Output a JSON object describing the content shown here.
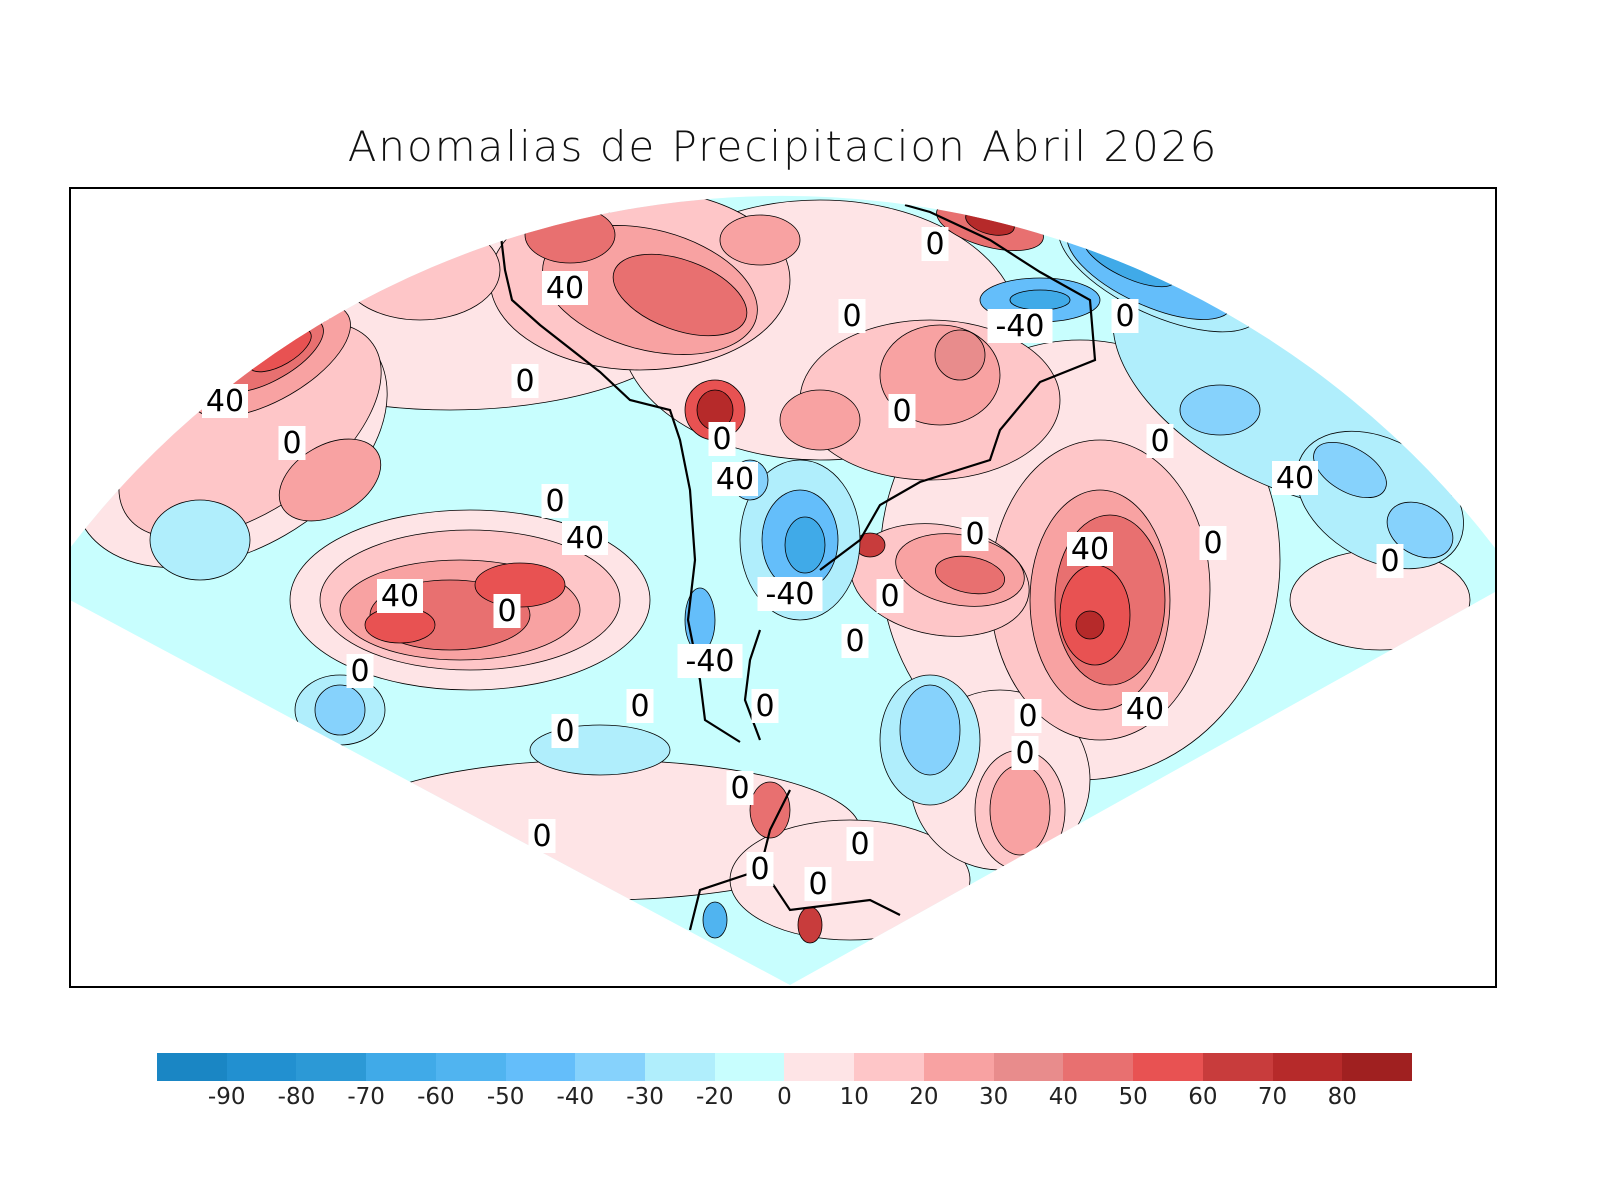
{
  "title": "Anomalias de Precipitacion Abril 2026",
  "colorbar": {
    "levels": [
      "-90",
      "-80",
      "-70",
      "-60",
      "-50",
      "-40",
      "-30",
      "-20",
      "0",
      "10",
      "20",
      "30",
      "40",
      "50",
      "60",
      "70",
      "80"
    ],
    "colors": [
      "#1a86c4",
      "#2290d0",
      "#2c99d6",
      "#40aae8",
      "#50b4f0",
      "#64befa",
      "#86d2fc",
      "#b0eefc",
      "#c8fefe",
      "#fee4e6",
      "#fec6c8",
      "#f8a2a2",
      "#e88c8c",
      "#e87070",
      "#e85252",
      "#c83c3c",
      "#b62a2a",
      "#a02020"
    ]
  },
  "contour_labels": [
    "40",
    "0",
    "40",
    "0",
    "0",
    "40",
    "0",
    "-40",
    "0",
    "0",
    "0",
    "0",
    "40",
    "40",
    "0",
    "0",
    "40",
    "-40",
    "-40",
    "0",
    "0",
    "0",
    "0",
    "40",
    "0",
    "0",
    "0",
    "0",
    "0",
    "0",
    "0",
    "0",
    "0",
    "0",
    "40",
    "0",
    "0"
  ]
}
